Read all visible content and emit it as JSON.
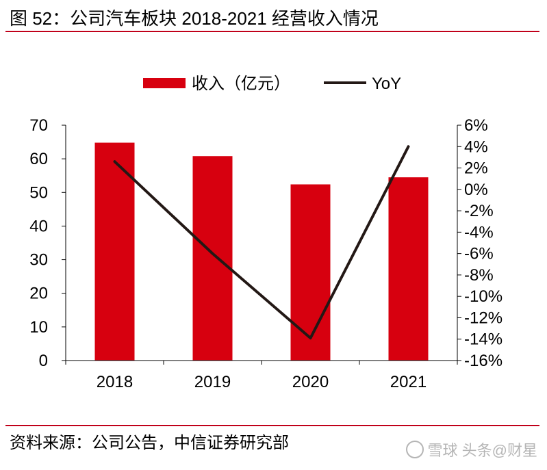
{
  "header": {
    "title": "图 52：公司汽车板块 2018-2021 经营收入情况"
  },
  "footer": {
    "source": "资料来源：公司公告，中信证券研究部",
    "watermark": "雪球 头条@财星"
  },
  "colors": {
    "bar": "#d7000f",
    "line": "#231815",
    "rule": "#c0001a"
  },
  "chart_data": {
    "type": "bar",
    "title": "",
    "categories": [
      "2018",
      "2019",
      "2020",
      "2021"
    ],
    "series": [
      {
        "name": "收入（亿元）",
        "type": "bar",
        "axis": "left",
        "values": [
          64.8,
          60.8,
          52.4,
          54.5
        ]
      },
      {
        "name": "YoY",
        "type": "line",
        "axis": "right",
        "values": [
          2.6,
          -6.0,
          -13.9,
          4.0
        ]
      }
    ],
    "y_left": {
      "min": 0,
      "max": 70,
      "step": 10,
      "ticks": [
        "0",
        "10",
        "20",
        "30",
        "40",
        "50",
        "60",
        "70"
      ]
    },
    "y_right": {
      "min": -16,
      "max": 6,
      "step": 2,
      "ticks": [
        "-16%",
        "-14%",
        "-12%",
        "-10%",
        "-8%",
        "-6%",
        "-4%",
        "-2%",
        "0%",
        "2%",
        "4%",
        "6%"
      ]
    },
    "legend_position": "top-center",
    "grid": false
  }
}
